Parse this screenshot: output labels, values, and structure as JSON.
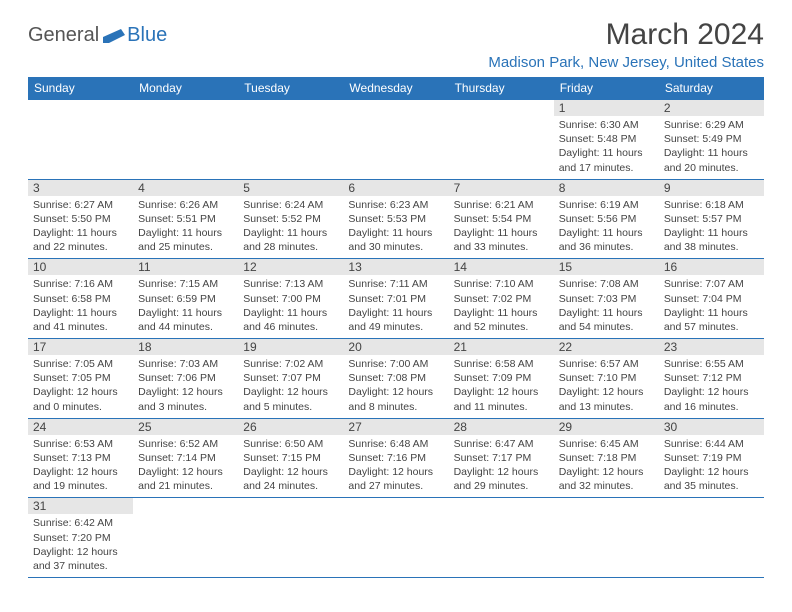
{
  "logo": {
    "general": "General",
    "blue": "Blue"
  },
  "title": "March 2024",
  "location": "Madison Park, New Jersey, United States",
  "colors": {
    "accent": "#2a73b8",
    "header_text": "#ffffff",
    "daynum_bg": "#e6e6e6",
    "border": "#2a73b8"
  },
  "dayNames": [
    "Sunday",
    "Monday",
    "Tuesday",
    "Wednesday",
    "Thursday",
    "Friday",
    "Saturday"
  ],
  "weeks": [
    [
      null,
      null,
      null,
      null,
      null,
      {
        "n": "1",
        "sr": "6:30 AM",
        "ss": "5:48 PM",
        "dl": "11 hours and 17 minutes."
      },
      {
        "n": "2",
        "sr": "6:29 AM",
        "ss": "5:49 PM",
        "dl": "11 hours and 20 minutes."
      }
    ],
    [
      {
        "n": "3",
        "sr": "6:27 AM",
        "ss": "5:50 PM",
        "dl": "11 hours and 22 minutes."
      },
      {
        "n": "4",
        "sr": "6:26 AM",
        "ss": "5:51 PM",
        "dl": "11 hours and 25 minutes."
      },
      {
        "n": "5",
        "sr": "6:24 AM",
        "ss": "5:52 PM",
        "dl": "11 hours and 28 minutes."
      },
      {
        "n": "6",
        "sr": "6:23 AM",
        "ss": "5:53 PM",
        "dl": "11 hours and 30 minutes."
      },
      {
        "n": "7",
        "sr": "6:21 AM",
        "ss": "5:54 PM",
        "dl": "11 hours and 33 minutes."
      },
      {
        "n": "8",
        "sr": "6:19 AM",
        "ss": "5:56 PM",
        "dl": "11 hours and 36 minutes."
      },
      {
        "n": "9",
        "sr": "6:18 AM",
        "ss": "5:57 PM",
        "dl": "11 hours and 38 minutes."
      }
    ],
    [
      {
        "n": "10",
        "sr": "7:16 AM",
        "ss": "6:58 PM",
        "dl": "11 hours and 41 minutes."
      },
      {
        "n": "11",
        "sr": "7:15 AM",
        "ss": "6:59 PM",
        "dl": "11 hours and 44 minutes."
      },
      {
        "n": "12",
        "sr": "7:13 AM",
        "ss": "7:00 PM",
        "dl": "11 hours and 46 minutes."
      },
      {
        "n": "13",
        "sr": "7:11 AM",
        "ss": "7:01 PM",
        "dl": "11 hours and 49 minutes."
      },
      {
        "n": "14",
        "sr": "7:10 AM",
        "ss": "7:02 PM",
        "dl": "11 hours and 52 minutes."
      },
      {
        "n": "15",
        "sr": "7:08 AM",
        "ss": "7:03 PM",
        "dl": "11 hours and 54 minutes."
      },
      {
        "n": "16",
        "sr": "7:07 AM",
        "ss": "7:04 PM",
        "dl": "11 hours and 57 minutes."
      }
    ],
    [
      {
        "n": "17",
        "sr": "7:05 AM",
        "ss": "7:05 PM",
        "dl": "12 hours and 0 minutes."
      },
      {
        "n": "18",
        "sr": "7:03 AM",
        "ss": "7:06 PM",
        "dl": "12 hours and 3 minutes."
      },
      {
        "n": "19",
        "sr": "7:02 AM",
        "ss": "7:07 PM",
        "dl": "12 hours and 5 minutes."
      },
      {
        "n": "20",
        "sr": "7:00 AM",
        "ss": "7:08 PM",
        "dl": "12 hours and 8 minutes."
      },
      {
        "n": "21",
        "sr": "6:58 AM",
        "ss": "7:09 PM",
        "dl": "12 hours and 11 minutes."
      },
      {
        "n": "22",
        "sr": "6:57 AM",
        "ss": "7:10 PM",
        "dl": "12 hours and 13 minutes."
      },
      {
        "n": "23",
        "sr": "6:55 AM",
        "ss": "7:12 PM",
        "dl": "12 hours and 16 minutes."
      }
    ],
    [
      {
        "n": "24",
        "sr": "6:53 AM",
        "ss": "7:13 PM",
        "dl": "12 hours and 19 minutes."
      },
      {
        "n": "25",
        "sr": "6:52 AM",
        "ss": "7:14 PM",
        "dl": "12 hours and 21 minutes."
      },
      {
        "n": "26",
        "sr": "6:50 AM",
        "ss": "7:15 PM",
        "dl": "12 hours and 24 minutes."
      },
      {
        "n": "27",
        "sr": "6:48 AM",
        "ss": "7:16 PM",
        "dl": "12 hours and 27 minutes."
      },
      {
        "n": "28",
        "sr": "6:47 AM",
        "ss": "7:17 PM",
        "dl": "12 hours and 29 minutes."
      },
      {
        "n": "29",
        "sr": "6:45 AM",
        "ss": "7:18 PM",
        "dl": "12 hours and 32 minutes."
      },
      {
        "n": "30",
        "sr": "6:44 AM",
        "ss": "7:19 PM",
        "dl": "12 hours and 35 minutes."
      }
    ],
    [
      {
        "n": "31",
        "sr": "6:42 AM",
        "ss": "7:20 PM",
        "dl": "12 hours and 37 minutes."
      },
      null,
      null,
      null,
      null,
      null,
      null
    ]
  ]
}
